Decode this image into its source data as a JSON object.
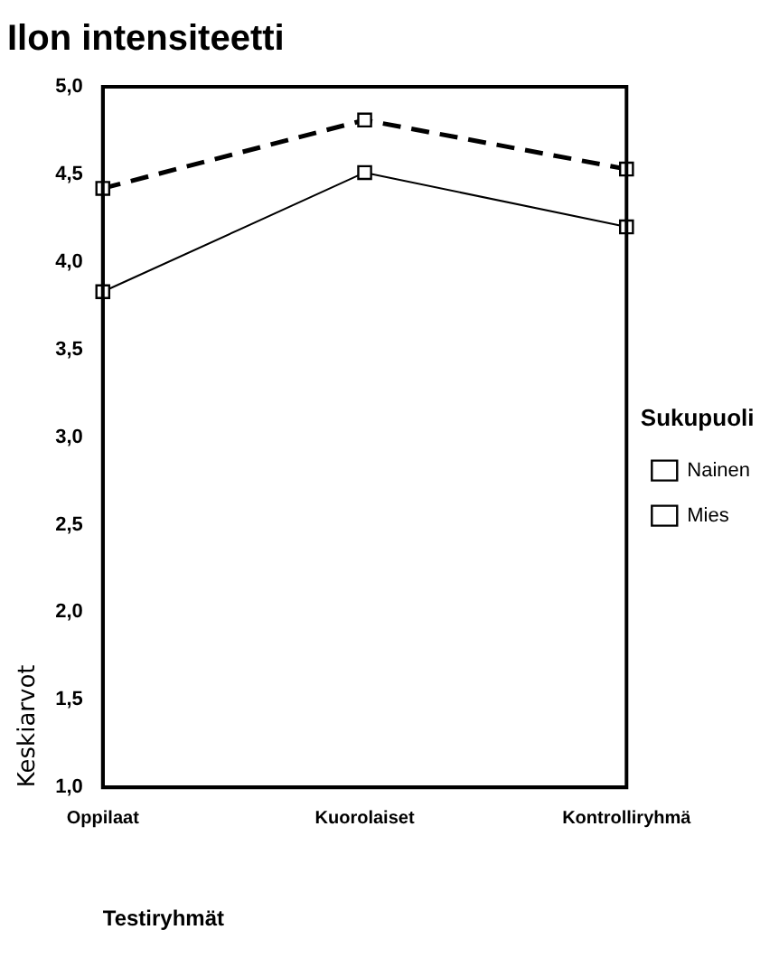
{
  "chart_data": {
    "type": "line",
    "title": "Ilon intensiteetti",
    "xlabel": "Testiryhmät",
    "ylabel": "Keskiarvot",
    "legend_title": "Sukupuoli",
    "categories": [
      "Oppilaat",
      "Kuorolaiset",
      "Kontrolliryhmä"
    ],
    "series": [
      {
        "name": "Nainen",
        "color": "#000000",
        "values": [
          4.42,
          4.81,
          4.53
        ],
        "line_style": "dashed"
      },
      {
        "name": "Mies",
        "color": "#000000",
        "values": [
          3.83,
          4.51,
          4.2
        ],
        "line_style": "solid"
      }
    ],
    "ylim": [
      1,
      5
    ],
    "yticks": [
      {
        "value": 1,
        "label": "1,0"
      },
      {
        "value": 1.5,
        "label": "1,5"
      },
      {
        "value": 2,
        "label": "2,0"
      },
      {
        "value": 2.5,
        "label": "2,5"
      },
      {
        "value": 3,
        "label": "3,0"
      },
      {
        "value": 3.5,
        "label": "3,5"
      },
      {
        "value": 4,
        "label": "4,0"
      },
      {
        "value": 4.5,
        "label": "4,5"
      },
      {
        "value": 5,
        "label": "5,0"
      }
    ],
    "grid": false,
    "legend": "right",
    "marker": "square"
  }
}
